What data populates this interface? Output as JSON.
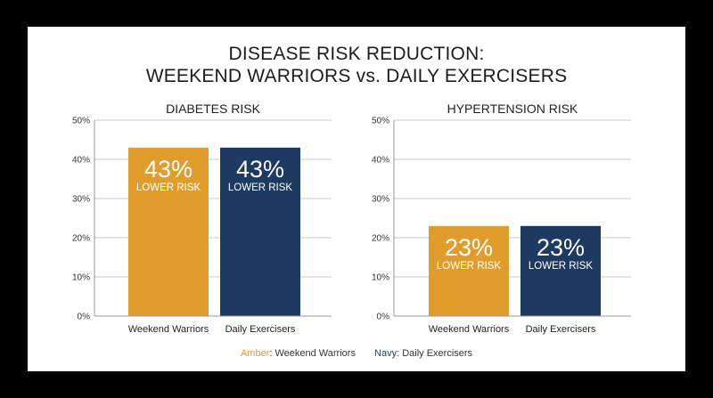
{
  "title_lines": [
    "DISEASE RISK REDUCTION:",
    "WEEKEND WARRIORS vs. DAILY EXERCISERS"
  ],
  "colors": {
    "amber": "#e19d2c",
    "navy": "#1f3a60",
    "grid": "#c9c9c9",
    "text": "#222222",
    "background": "#ffffff",
    "frame": "#000000"
  },
  "legend": {
    "items": [
      {
        "key": "Amber",
        "label": ": Weekend Warriors",
        "color": "#e19d2c"
      },
      {
        "key": "Navy",
        "label": ": Daily Exercisers",
        "color": "#1f3a60"
      }
    ]
  },
  "chart_data": [
    {
      "type": "bar",
      "title": "DIABETES RISK",
      "categories": [
        "Weekend Warriors",
        "Daily Exercisers"
      ],
      "values": [
        43,
        43
      ],
      "bar_colors": [
        "#e19d2c",
        "#1f3a60"
      ],
      "value_labels": [
        "43%",
        "43%"
      ],
      "sub_labels": [
        "LOWER RISK",
        "LOWER RISK"
      ],
      "y_ticks": [
        "0%",
        "10%",
        "20%",
        "30%",
        "40%",
        "50%"
      ],
      "ylim": [
        0,
        50
      ],
      "grid": true
    },
    {
      "type": "bar",
      "title": "HYPERTENSION RISK",
      "categories": [
        "Weekend Warriors",
        "Daily Exercisers"
      ],
      "values": [
        23,
        23
      ],
      "bar_colors": [
        "#e19d2c",
        "#1f3a60"
      ],
      "value_labels": [
        "23%",
        "23%"
      ],
      "sub_labels": [
        "LOWER RISK",
        "LOWER RISK"
      ],
      "y_ticks": [
        "0%",
        "10%",
        "20%",
        "30%",
        "40%",
        "50%"
      ],
      "ylim": [
        0,
        50
      ],
      "grid": true
    }
  ]
}
